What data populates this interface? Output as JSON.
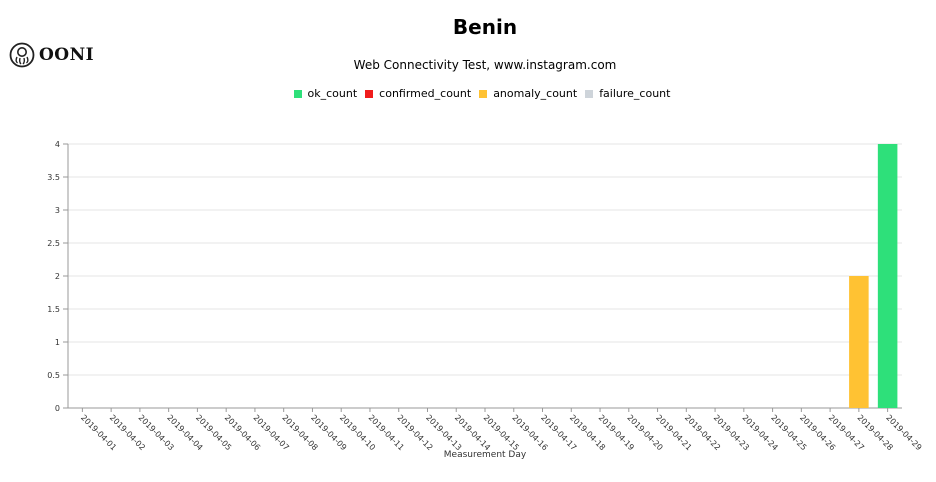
{
  "logo": {
    "text": "OONI",
    "icon": "ooni-octopus-icon"
  },
  "chart_data": {
    "type": "bar",
    "title": "Benin",
    "subtitle": "Web Connectivity Test, www.instagram.com",
    "xlabel": "Measurement Day",
    "ylabel": "",
    "ylim": [
      0,
      4
    ],
    "yticks": [
      0,
      0.5,
      1,
      1.5,
      2,
      2.5,
      3,
      3.5,
      4
    ],
    "grid": true,
    "legend_position": "top-center",
    "categories": [
      "2019-04-01",
      "2019-04-02",
      "2019-04-03",
      "2019-04-04",
      "2019-04-05",
      "2019-04-06",
      "2019-04-07",
      "2019-04-08",
      "2019-04-09",
      "2019-04-10",
      "2019-04-11",
      "2019-04-12",
      "2019-04-13",
      "2019-04-14",
      "2019-04-15",
      "2019-04-16",
      "2019-04-17",
      "2019-04-18",
      "2019-04-19",
      "2019-04-20",
      "2019-04-21",
      "2019-04-22",
      "2019-04-23",
      "2019-04-24",
      "2019-04-25",
      "2019-04-26",
      "2019-04-27",
      "2019-04-28",
      "2019-04-29"
    ],
    "series": [
      {
        "name": "ok_count",
        "color": "#2ee07a",
        "values": [
          0,
          0,
          0,
          0,
          0,
          0,
          0,
          0,
          0,
          0,
          0,
          0,
          0,
          0,
          0,
          0,
          0,
          0,
          0,
          0,
          0,
          0,
          0,
          0,
          0,
          0,
          0,
          0,
          4
        ]
      },
      {
        "name": "confirmed_count",
        "color": "#f01c1c",
        "values": [
          0,
          0,
          0,
          0,
          0,
          0,
          0,
          0,
          0,
          0,
          0,
          0,
          0,
          0,
          0,
          0,
          0,
          0,
          0,
          0,
          0,
          0,
          0,
          0,
          0,
          0,
          0,
          0,
          0
        ]
      },
      {
        "name": "anomaly_count",
        "color": "#ffc233",
        "values": [
          0,
          0,
          0,
          0,
          0,
          0,
          0,
          0,
          0,
          0,
          0,
          0,
          0,
          0,
          0,
          0,
          0,
          0,
          0,
          0,
          0,
          0,
          0,
          0,
          0,
          0,
          0,
          2,
          0
        ]
      },
      {
        "name": "failure_count",
        "color": "#ced4da",
        "values": [
          0,
          0,
          0,
          0,
          0,
          0,
          0,
          0,
          0,
          0,
          0,
          0,
          0,
          0,
          0,
          0,
          0,
          0,
          0,
          0,
          0,
          0,
          0,
          0,
          0,
          0,
          0,
          0,
          0
        ]
      }
    ]
  }
}
